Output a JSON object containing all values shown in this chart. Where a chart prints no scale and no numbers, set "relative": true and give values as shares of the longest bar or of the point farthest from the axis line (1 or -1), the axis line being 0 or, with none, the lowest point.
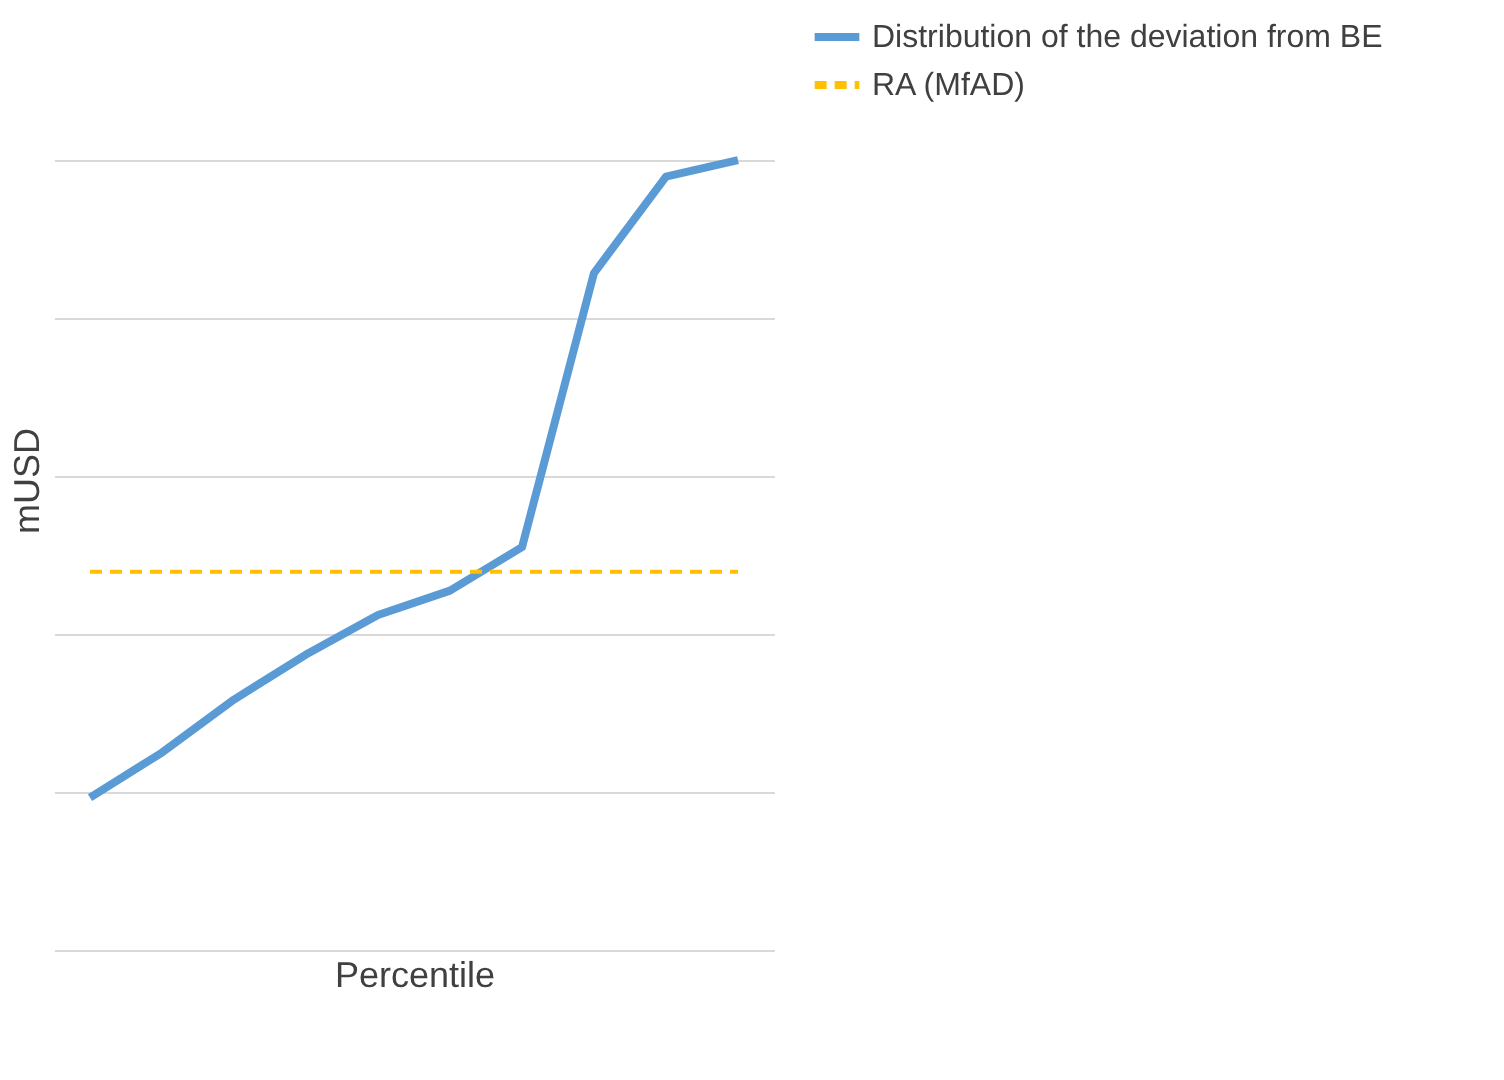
{
  "chart_data": {
    "type": "line",
    "relative": true,
    "ylabel": "mUSD",
    "xlabel": "Percentile",
    "categories": [
      null,
      null,
      null,
      null,
      null,
      null,
      null,
      null,
      null,
      null
    ],
    "series": [
      {
        "name": "Distribution of the deviation from BE",
        "color": "#5b9bd5",
        "values": [
          0.193,
          0.25,
          0.317,
          0.374,
          0.424,
          0.455,
          0.51,
          0.857,
          0.979,
          1.0
        ]
      }
    ],
    "ref_lines": [
      {
        "axis": "y",
        "value": 0.479,
        "label": "RA (MfAD)",
        "color": "#ffc000",
        "line_style": "dashed"
      }
    ],
    "grid": "y",
    "legend": "right",
    "tick_labels": false,
    "marker": "none",
    "line_style": "solid"
  }
}
